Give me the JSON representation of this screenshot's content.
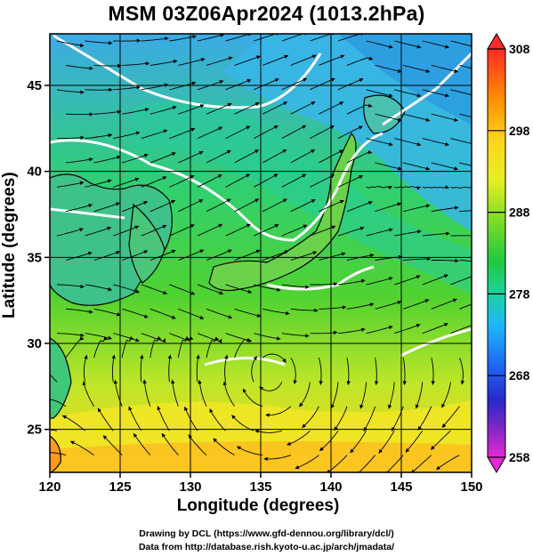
{
  "title": "MSM 03Z06Apr2024 (1013.2hPa)",
  "map": {
    "xlabel": "Longitude (degrees)",
    "ylabel": "Latitude  (degrees)",
    "xlim": [
      120,
      150
    ],
    "ylim": [
      22.5,
      48
    ],
    "xticks": [
      "120",
      "125",
      "130",
      "135",
      "140",
      "145",
      "150"
    ],
    "yticks": [
      "25",
      "30",
      "35",
      "40",
      "45"
    ],
    "grid": true,
    "field": "potential temperature colour shading with streamlines"
  },
  "colorbar": {
    "labels": [
      "308",
      "298",
      "288",
      "278",
      "268",
      "258"
    ],
    "range": [
      258,
      308
    ],
    "colors": [
      "#cc00cc",
      "#2a2ae0",
      "#20b0ff",
      "#20d0a0",
      "#30d040",
      "#f0f020",
      "#ffa000",
      "#ff2020"
    ]
  },
  "credits": {
    "line1": "Drawing by DCL (https://www.gfd‐dennou.org/library/dcl/)",
    "line2": "Data from http://database.rish.kyoto‐u.ac.jp/arch/jmadata/"
  }
}
